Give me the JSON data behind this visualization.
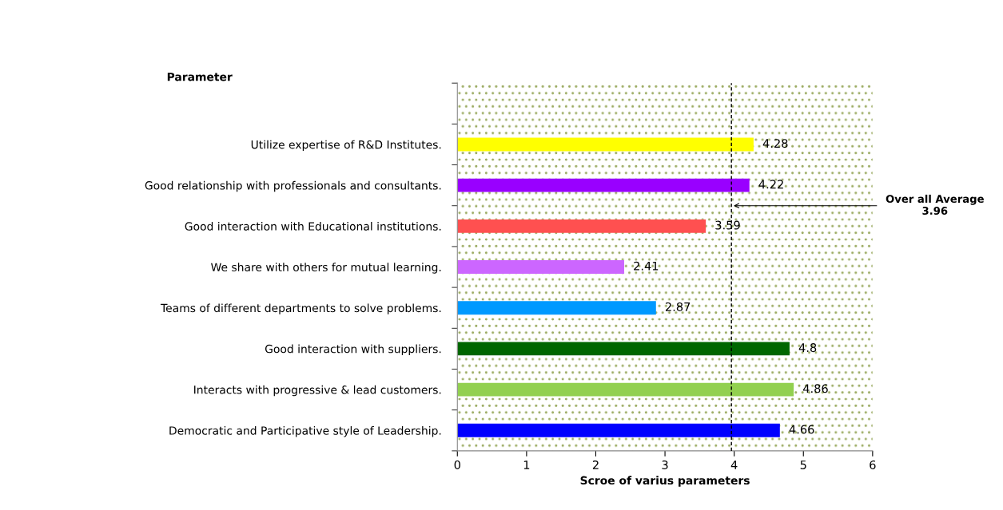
{
  "chart_data": {
    "type": "bar",
    "orientation": "horizontal",
    "xlabel": "Scroe of varius parameters",
    "ylabel": "Parameter",
    "categories": [
      null,
      "Utilize expertise of R&D Institutes.",
      "Good relationship with professionals and consultants.",
      "Good interaction with Educational institutions.",
      "We share with others for mutual learning.",
      "Teams of different departments to solve problems.",
      "Good interaction with suppliers.",
      "Interacts with progressive & lead customers.",
      "Democratic and Participative style of Leadership."
    ],
    "values": [
      null,
      4.28,
      4.22,
      3.59,
      2.41,
      2.87,
      4.8,
      4.86,
      4.66
    ],
    "colors": [
      "#ffffff",
      "#ffff00",
      "#9900ff",
      "#ff5050",
      "#cc66ff",
      "#0099ff",
      "#006600",
      "#92d050",
      "#0000ff"
    ],
    "data_labels": true,
    "xlim": [
      0,
      6
    ],
    "xticks": [
      0,
      1,
      2,
      3,
      4,
      5,
      6
    ],
    "grid": false,
    "legend": false,
    "ref_lines": [
      {
        "axis": "x",
        "value": 3.96,
        "label": "Over all Average\n3.96",
        "color": "#000000",
        "line_style": "dashed"
      }
    ]
  }
}
